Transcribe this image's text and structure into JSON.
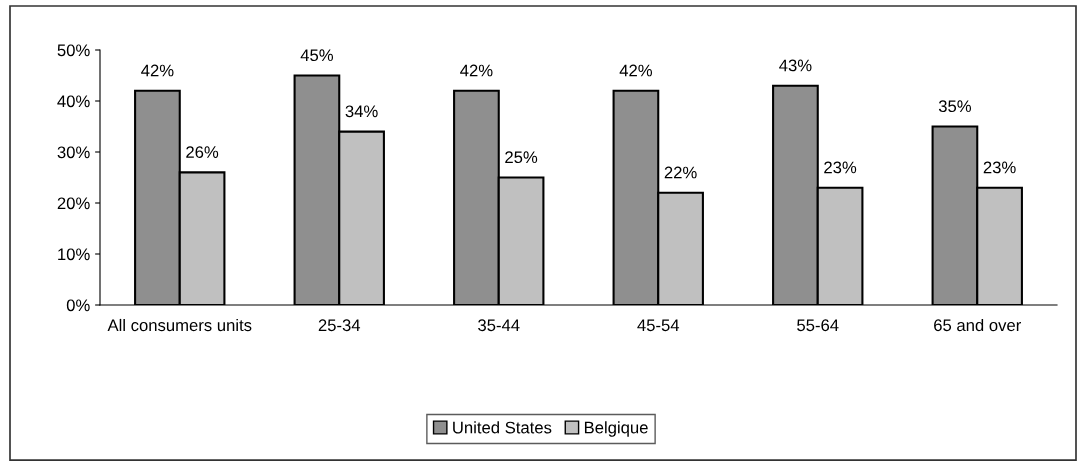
{
  "chart_data": {
    "type": "bar",
    "categories": [
      "All consumers units",
      "25-34",
      "35-44",
      "45-54",
      "55-64",
      "65 and over"
    ],
    "series": [
      {
        "name": "United States",
        "color": "#8f8f8f",
        "values": [
          42,
          45,
          42,
          42,
          43,
          35
        ],
        "value_labels": [
          "42%",
          "45%",
          "42%",
          "42%",
          "43%",
          "35%"
        ]
      },
      {
        "name": "Belgique",
        "color": "#c0c0c0",
        "values": [
          26,
          34,
          25,
          22,
          23,
          23
        ],
        "value_labels": [
          "26%",
          "34%",
          "25%",
          "22%",
          "23%",
          "23%"
        ]
      }
    ],
    "ylim": [
      0,
      50
    ],
    "yticks": [
      {
        "value": 0,
        "label": "0%"
      },
      {
        "value": 10,
        "label": "10%"
      },
      {
        "value": 20,
        "label": "20%"
      },
      {
        "value": 30,
        "label": "30%"
      },
      {
        "value": 40,
        "label": "40%"
      },
      {
        "value": 50,
        "label": "50%"
      }
    ],
    "grid": false,
    "legend": "bottom"
  }
}
